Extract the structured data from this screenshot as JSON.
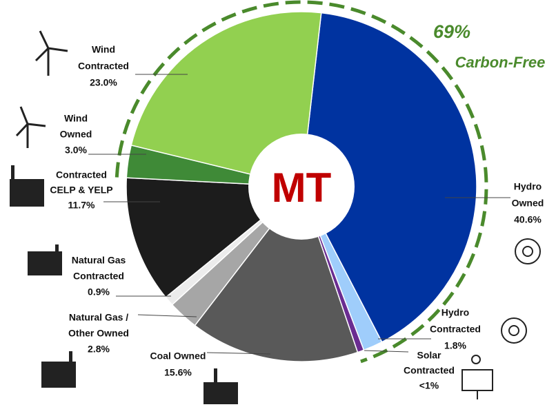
{
  "chart_data": {
    "type": "pie",
    "center_label": "MT",
    "annotation": "69%",
    "annotation_label": "Carbon-Free",
    "labels": [
      [
        "Hydro",
        "Owned"
      ],
      [
        "Hydro",
        "Contracted"
      ],
      [
        "Solar",
        "Contracted"
      ],
      [
        "Coal Owned"
      ],
      [
        "Natural Gas /",
        "Other Owned"
      ],
      [
        "Natural Gas",
        "Contracted"
      ],
      [
        "Contracted",
        "CELP & YELP"
      ],
      [
        "Wind",
        "Owned"
      ],
      [
        "Wind",
        "Contracted"
      ]
    ],
    "values": [
      40.6,
      1.8,
      0.6,
      15.6,
      2.8,
      0.9,
      11.7,
      3.0,
      23.0
    ],
    "value_labels": [
      "40.6%",
      "1.8%",
      "<1%",
      "15.6%",
      "2.8%",
      "0.9%",
      "11.7%",
      "3.0%",
      "23.0%"
    ],
    "colors": [
      "#0033a0",
      "#9fcdfb",
      "#6a2c91",
      "#595959",
      "#a6a6a6",
      "#ececec",
      "#1c1c1c",
      "#3f8a37",
      "#92d050"
    ]
  }
}
